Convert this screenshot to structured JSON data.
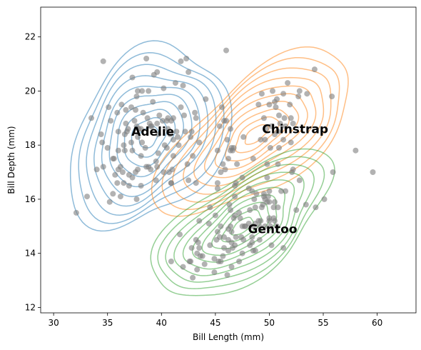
{
  "chart_data": {
    "type": "scatter",
    "title": "",
    "xlabel": "Bill Length (mm)",
    "ylabel": "Bill Depth (mm)",
    "xlim": [
      28.8,
      63.6
    ],
    "ylim": [
      11.8,
      23.1
    ],
    "xticks": [
      30,
      35,
      40,
      45,
      50,
      55,
      60
    ],
    "yticks": [
      12,
      14,
      16,
      18,
      20,
      22
    ],
    "xtick_labels": [
      "30",
      "35",
      "40",
      "45",
      "50",
      "55",
      "60"
    ],
    "ytick_labels": [
      "12",
      "14",
      "16",
      "18",
      "20",
      "22"
    ],
    "grid": false,
    "point_color": "#7f7f7f",
    "contour_levels": 10,
    "groups": [
      {
        "label": "Adelie",
        "color": "#1f77b4",
        "label_pos": [
          39.2,
          18.5
        ],
        "center": [
          38.8,
          18.3
        ],
        "spread": [
          2.7,
          1.2
        ],
        "corr": 0.3,
        "points": [
          [
            32.1,
            15.5
          ],
          [
            33.1,
            16.1
          ],
          [
            33.5,
            19.0
          ],
          [
            34.0,
            17.1
          ],
          [
            34.4,
            18.4
          ],
          [
            34.5,
            18.1
          ],
          [
            34.6,
            21.1
          ],
          [
            34.6,
            17.2
          ],
          [
            35.0,
            17.9
          ],
          [
            35.1,
            19.4
          ],
          [
            35.2,
            15.9
          ],
          [
            35.3,
            18.9
          ],
          [
            35.5,
            17.5
          ],
          [
            35.5,
            16.2
          ],
          [
            35.6,
            17.5
          ],
          [
            35.7,
            16.9
          ],
          [
            35.9,
            16.6
          ],
          [
            35.9,
            19.2
          ],
          [
            36.0,
            18.5
          ],
          [
            36.0,
            17.1
          ],
          [
            36.0,
            17.8
          ],
          [
            36.2,
            17.2
          ],
          [
            36.2,
            16.1
          ],
          [
            36.3,
            19.5
          ],
          [
            36.4,
            17.0
          ],
          [
            36.5,
            16.6
          ],
          [
            36.5,
            18.0
          ],
          [
            36.6,
            17.8
          ],
          [
            36.6,
            18.4
          ],
          [
            36.7,
            19.3
          ],
          [
            36.7,
            18.8
          ],
          [
            36.8,
            18.5
          ],
          [
            36.9,
            18.6
          ],
          [
            37.0,
            16.9
          ],
          [
            37.0,
            16.5
          ],
          [
            37.2,
            18.1
          ],
          [
            37.2,
            19.4
          ],
          [
            37.3,
            20.5
          ],
          [
            37.3,
            17.8
          ],
          [
            37.3,
            16.8
          ],
          [
            37.5,
            18.9
          ],
          [
            37.6,
            19.3
          ],
          [
            37.6,
            17.0
          ],
          [
            37.7,
            18.7
          ],
          [
            37.7,
            16.0
          ],
          [
            37.7,
            19.8
          ],
          [
            37.8,
            18.3
          ],
          [
            37.8,
            17.1
          ],
          [
            37.8,
            20.0
          ],
          [
            37.9,
            18.6
          ],
          [
            38.1,
            18.6
          ],
          [
            38.1,
            16.5
          ],
          [
            38.1,
            17.6
          ],
          [
            38.2,
            18.1
          ],
          [
            38.2,
            20.0
          ],
          [
            38.3,
            19.2
          ],
          [
            38.5,
            17.9
          ],
          [
            38.6,
            21.2
          ],
          [
            38.6,
            17.2
          ],
          [
            38.7,
            19.0
          ],
          [
            38.8,
            17.2
          ],
          [
            38.8,
            20.0
          ],
          [
            38.9,
            18.8
          ],
          [
            39.0,
            17.1
          ],
          [
            39.0,
            18.7
          ],
          [
            39.1,
            18.7
          ],
          [
            39.2,
            19.6
          ],
          [
            39.3,
            20.6
          ],
          [
            39.5,
            16.7
          ],
          [
            39.5,
            17.4
          ],
          [
            39.6,
            18.8
          ],
          [
            39.6,
            17.2
          ],
          [
            39.6,
            20.7
          ],
          [
            39.7,
            18.4
          ],
          [
            39.7,
            17.7
          ],
          [
            39.8,
            19.1
          ],
          [
            40.1,
            18.9
          ],
          [
            40.2,
            17.0
          ],
          [
            40.2,
            20.1
          ],
          [
            40.3,
            18.0
          ],
          [
            40.5,
            17.9
          ],
          [
            40.5,
            18.9
          ],
          [
            40.6,
            18.6
          ],
          [
            40.6,
            19.0
          ],
          [
            40.7,
            17.0
          ],
          [
            40.8,
            18.4
          ],
          [
            40.9,
            18.9
          ],
          [
            40.9,
            16.6
          ],
          [
            41.0,
            17.1
          ],
          [
            41.1,
            18.2
          ],
          [
            41.1,
            19.0
          ],
          [
            41.1,
            17.6
          ],
          [
            41.3,
            20.3
          ],
          [
            41.4,
            18.5
          ],
          [
            41.5,
            18.3
          ],
          [
            41.6,
            18.0
          ],
          [
            41.8,
            19.4
          ],
          [
            41.8,
            21.1
          ],
          [
            42.0,
            20.2
          ],
          [
            42.1,
            19.1
          ],
          [
            42.2,
            18.5
          ],
          [
            42.3,
            21.2
          ],
          [
            42.5,
            20.7
          ],
          [
            42.7,
            18.3
          ],
          [
            42.8,
            18.5
          ],
          [
            42.9,
            17.6
          ],
          [
            43.1,
            19.2
          ],
          [
            43.2,
            19.0
          ],
          [
            44.1,
            19.7
          ],
          [
            45.8,
            18.9
          ],
          [
            46.0,
            21.5
          ]
        ]
      },
      {
        "label": "Chinstrap",
        "color": "#ff7f0e",
        "label_pos": [
          52.4,
          18.6
        ],
        "center": [
          48.8,
          18.4
        ],
        "spread": [
          3.3,
          1.1
        ],
        "corr": 0.65,
        "points": [
          [
            40.9,
            16.6
          ],
          [
            42.4,
            17.3
          ],
          [
            42.5,
            16.7
          ],
          [
            43.2,
            16.6
          ],
          [
            43.5,
            18.1
          ],
          [
            45.2,
            17.8
          ],
          [
            45.2,
            16.6
          ],
          [
            45.4,
            18.7
          ],
          [
            45.5,
            17.0
          ],
          [
            45.6,
            19.4
          ],
          [
            45.7,
            17.3
          ],
          [
            45.9,
            17.1
          ],
          [
            46.0,
            18.9
          ],
          [
            46.1,
            18.2
          ],
          [
            46.2,
            17.5
          ],
          [
            46.4,
            18.6
          ],
          [
            46.4,
            17.8
          ],
          [
            46.5,
            17.9
          ],
          [
            46.6,
            17.8
          ],
          [
            46.7,
            17.9
          ],
          [
            46.8,
            16.5
          ],
          [
            46.9,
            16.6
          ],
          [
            47.0,
            17.3
          ],
          [
            47.5,
            16.8
          ],
          [
            47.6,
            18.3
          ],
          [
            48.1,
            16.4
          ],
          [
            48.5,
            17.5
          ],
          [
            49.0,
            19.5
          ],
          [
            49.2,
            18.2
          ],
          [
            49.3,
            19.9
          ],
          [
            49.5,
            19.0
          ],
          [
            49.6,
            18.2
          ],
          [
            49.7,
            18.6
          ],
          [
            49.8,
            17.3
          ],
          [
            50.0,
            19.5
          ],
          [
            50.1,
            17.9
          ],
          [
            50.2,
            18.7
          ],
          [
            50.3,
            20.0
          ],
          [
            50.5,
            18.4
          ],
          [
            50.5,
            19.6
          ],
          [
            50.6,
            19.4
          ],
          [
            50.7,
            19.7
          ],
          [
            50.8,
            18.5
          ],
          [
            50.9,
            17.9
          ],
          [
            50.9,
            19.1
          ],
          [
            51.0,
            18.8
          ],
          [
            51.3,
            18.2
          ],
          [
            51.3,
            19.9
          ],
          [
            51.4,
            19.0
          ],
          [
            51.5,
            18.7
          ],
          [
            51.7,
            20.3
          ],
          [
            51.9,
            19.5
          ],
          [
            52.0,
            18.1
          ],
          [
            52.0,
            19.0
          ],
          [
            52.2,
            18.8
          ],
          [
            52.7,
            19.8
          ],
          [
            52.8,
            20.0
          ],
          [
            53.5,
            19.9
          ],
          [
            54.2,
            20.8
          ],
          [
            55.8,
            19.8
          ],
          [
            58.0,
            17.8
          ]
        ]
      },
      {
        "label": "Gentoo",
        "color": "#2ca02c",
        "label_pos": [
          50.3,
          14.9
        ],
        "center": [
          47.5,
          15.0
        ],
        "spread": [
          3.0,
          0.98
        ],
        "corr": 0.64,
        "points": [
          [
            40.9,
            13.7
          ],
          [
            41.7,
            14.7
          ],
          [
            42.0,
            13.5
          ],
          [
            42.6,
            13.7
          ],
          [
            42.7,
            13.7
          ],
          [
            42.8,
            14.2
          ],
          [
            42.9,
            13.1
          ],
          [
            43.2,
            14.5
          ],
          [
            43.3,
            13.4
          ],
          [
            43.3,
            14.0
          ],
          [
            43.4,
            14.4
          ],
          [
            43.5,
            14.2
          ],
          [
            43.5,
            15.2
          ],
          [
            43.6,
            13.9
          ],
          [
            43.8,
            13.9
          ],
          [
            44.0,
            13.6
          ],
          [
            44.4,
            15.1
          ],
          [
            44.5,
            14.3
          ],
          [
            44.5,
            15.7
          ],
          [
            44.9,
            13.8
          ],
          [
            44.9,
            13.3
          ],
          [
            45.0,
            15.4
          ],
          [
            45.1,
            14.5
          ],
          [
            45.2,
            14.8
          ],
          [
            45.2,
            16.4
          ],
          [
            45.3,
            13.7
          ],
          [
            45.4,
            14.6
          ],
          [
            45.5,
            13.7
          ],
          [
            45.5,
            15.0
          ],
          [
            45.7,
            13.9
          ],
          [
            45.8,
            14.2
          ],
          [
            45.8,
            14.6
          ],
          [
            46.1,
            13.2
          ],
          [
            46.2,
            14.1
          ],
          [
            46.2,
            14.5
          ],
          [
            46.2,
            14.9
          ],
          [
            46.3,
            15.8
          ],
          [
            46.4,
            15.0
          ],
          [
            46.4,
            15.6
          ],
          [
            46.5,
            13.5
          ],
          [
            46.5,
            14.4
          ],
          [
            46.5,
            14.8
          ],
          [
            46.6,
            14.2
          ],
          [
            46.7,
            15.3
          ],
          [
            46.8,
            14.3
          ],
          [
            46.8,
            15.4
          ],
          [
            46.8,
            16.1
          ],
          [
            46.9,
            14.6
          ],
          [
            47.2,
            13.7
          ],
          [
            47.2,
            15.5
          ],
          [
            47.3,
            15.3
          ],
          [
            47.4,
            14.6
          ],
          [
            47.5,
            14.0
          ],
          [
            47.5,
            15.0
          ],
          [
            47.6,
            14.5
          ],
          [
            47.7,
            15.0
          ],
          [
            47.8,
            15.0
          ],
          [
            48.1,
            15.1
          ],
          [
            48.2,
            14.3
          ],
          [
            48.2,
            15.6
          ],
          [
            48.4,
            14.4
          ],
          [
            48.4,
            14.6
          ],
          [
            48.4,
            16.3
          ],
          [
            48.5,
            14.1
          ],
          [
            48.5,
            15.0
          ],
          [
            48.6,
            16.0
          ],
          [
            48.7,
            14.1
          ],
          [
            48.7,
            15.1
          ],
          [
            48.7,
            15.7
          ],
          [
            48.8,
            16.2
          ],
          [
            49.0,
            15.2
          ],
          [
            49.1,
            14.5
          ],
          [
            49.1,
            15.0
          ],
          [
            49.2,
            15.2
          ],
          [
            49.3,
            15.7
          ],
          [
            49.4,
            15.8
          ],
          [
            49.5,
            16.1
          ],
          [
            49.5,
            16.2
          ],
          [
            49.6,
            15.0
          ],
          [
            49.6,
            16.0
          ],
          [
            49.8,
            15.9
          ],
          [
            49.8,
            16.8
          ],
          [
            49.9,
            16.1
          ],
          [
            50.0,
            15.2
          ],
          [
            50.0,
            15.3
          ],
          [
            50.0,
            15.9
          ],
          [
            50.0,
            16.3
          ],
          [
            50.1,
            15.0
          ],
          [
            50.2,
            14.3
          ],
          [
            50.4,
            15.3
          ],
          [
            50.4,
            15.7
          ],
          [
            50.5,
            15.2
          ],
          [
            50.5,
            15.9
          ],
          [
            50.7,
            15.0
          ],
          [
            50.8,
            15.7
          ],
          [
            50.8,
            17.3
          ],
          [
            51.1,
            16.3
          ],
          [
            51.3,
            14.2
          ],
          [
            51.5,
            16.3
          ],
          [
            52.1,
            17.0
          ],
          [
            52.2,
            17.1
          ],
          [
            52.5,
            15.6
          ],
          [
            52.8,
            16.7
          ],
          [
            53.4,
            15.8
          ],
          [
            54.3,
            15.7
          ],
          [
            55.1,
            16.0
          ],
          [
            55.9,
            17.0
          ],
          [
            59.6,
            17.0
          ]
        ]
      }
    ]
  }
}
